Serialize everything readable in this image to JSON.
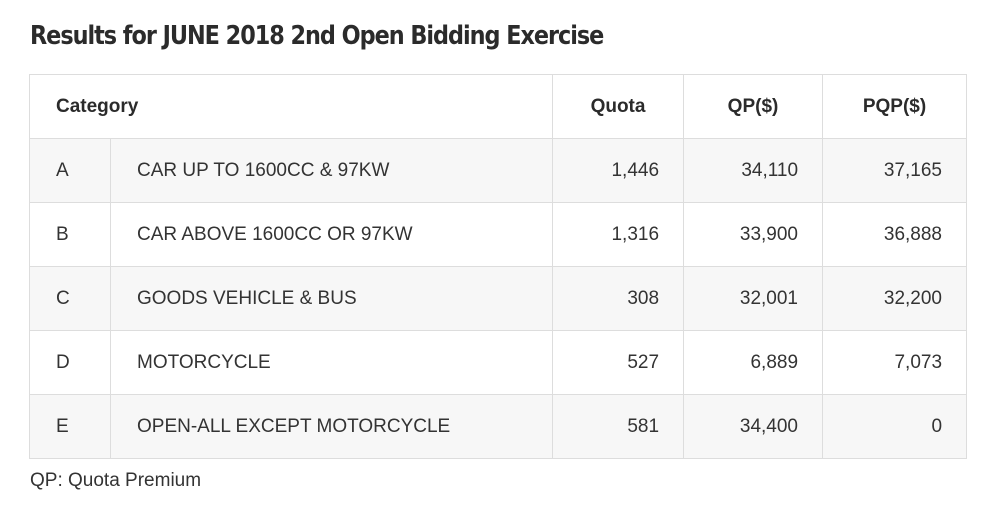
{
  "title": "Results for JUNE 2018 2nd Open Bidding Exercise",
  "table": {
    "headers": {
      "category": "Category",
      "quota": "Quota",
      "qp": "QP($)",
      "pqp": "PQP($)"
    },
    "rows": [
      {
        "code": "A",
        "description": "CAR UP TO 1600CC & 97KW",
        "quota": "1,446",
        "qp": "34,110",
        "pqp": "37,165"
      },
      {
        "code": "B",
        "description": "CAR ABOVE 1600CC OR 97KW",
        "quota": "1,316",
        "qp": "33,900",
        "pqp": "36,888"
      },
      {
        "code": "C",
        "description": "GOODS VEHICLE & BUS",
        "quota": "308",
        "qp": "32,001",
        "pqp": "32,200"
      },
      {
        "code": "D",
        "description": "MOTORCYCLE",
        "quota": "527",
        "qp": "6,889",
        "pqp": "7,073"
      },
      {
        "code": "E",
        "description": "OPEN-ALL EXCEPT MOTORCYCLE",
        "quota": "581",
        "qp": "34,400",
        "pqp": "0"
      }
    ]
  },
  "footnote": "QP: Quota Premium"
}
